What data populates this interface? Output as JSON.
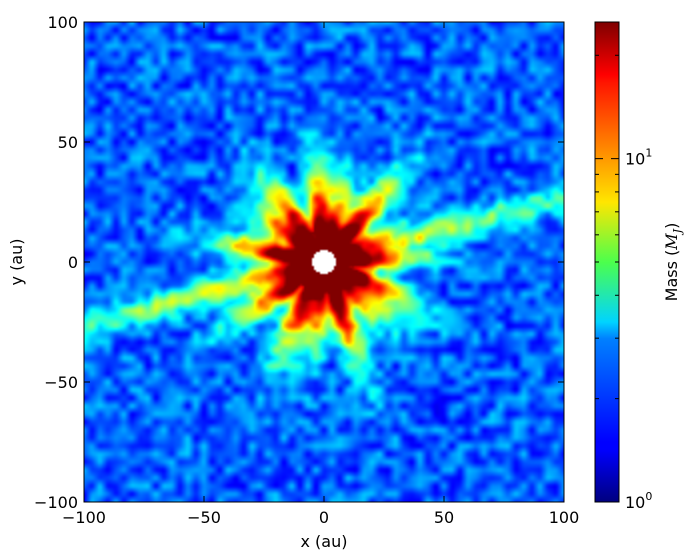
{
  "chart_data": {
    "type": "heatmap",
    "title": "",
    "xlabel": "x (au)",
    "ylabel": "y (au)",
    "xlim": [
      -100,
      100
    ],
    "ylim": [
      -100,
      100
    ],
    "xticks": [
      -100,
      -50,
      0,
      50,
      100
    ],
    "yticks": [
      -100,
      -50,
      0,
      50,
      100
    ],
    "xtick_labels": [
      "−100",
      "−50",
      "0",
      "50",
      "100"
    ],
    "ytick_labels": [
      "−100",
      "−50",
      "0",
      "50",
      "100"
    ],
    "grid": false,
    "colormap": "jet",
    "colorbar": {
      "label_prefix": "Mass (",
      "label_symbol": "M",
      "label_subscript": "J",
      "label_suffix": ")",
      "scale": "log",
      "range": [
        1,
        25
      ],
      "major_ticks": [
        1,
        10
      ],
      "major_tick_labels": [
        {
          "base": "10",
          "exp": "0"
        },
        {
          "base": "10",
          "exp": "1"
        }
      ]
    },
    "features": {
      "central_hole_radius_au": 5,
      "core_value": 25,
      "background_value": 1.6,
      "disk_position_angle_deg": 15
    }
  }
}
